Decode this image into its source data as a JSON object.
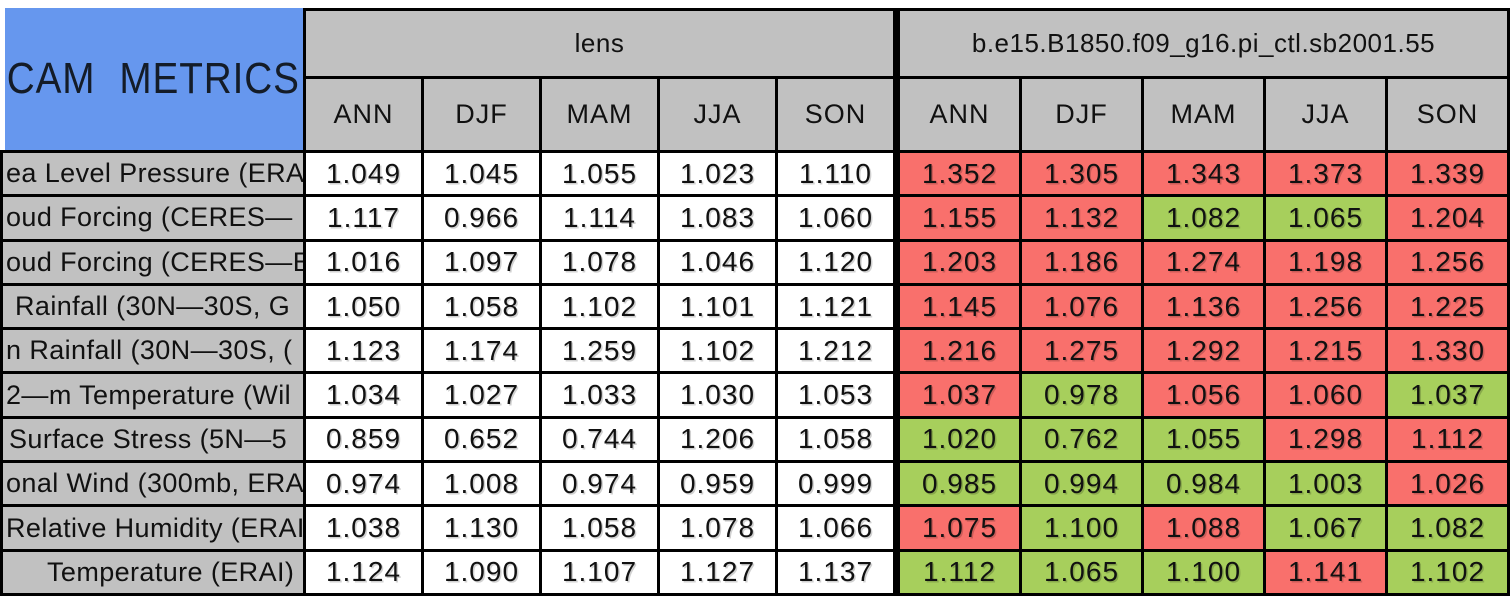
{
  "title": "CAM METRICS",
  "colors": {
    "blue": "#6697ee",
    "gray": "#c1c1c1",
    "red": "#f9706c",
    "green": "#a7cf5c",
    "border": "#000000",
    "plain_cell": "#ffffff"
  },
  "chart_data": {
    "type": "table",
    "title": "CAM METRICS",
    "column_groups": [
      {
        "label": "lens",
        "seasons": [
          "ANN",
          "DJF",
          "MAM",
          "JJA",
          "SON"
        ]
      },
      {
        "label": "b.e15.B1850.f09_g16.pi_ctl.sb2001.55",
        "seasons": [
          "ANN",
          "DJF",
          "MAM",
          "JJA",
          "SON"
        ]
      }
    ],
    "rows": [
      {
        "label": "ea Level Pressure (ERA",
        "lens": [
          "1.049",
          "1.045",
          "1.055",
          "1.023",
          "1.110"
        ],
        "case_values": [
          "1.352",
          "1.305",
          "1.343",
          "1.373",
          "1.339"
        ],
        "case_colors": [
          "red",
          "red",
          "red",
          "red",
          "red"
        ]
      },
      {
        "label": "oud Forcing (CERES—",
        "lens": [
          "1.117",
          "0.966",
          "1.114",
          "1.083",
          "1.060"
        ],
        "case_values": [
          "1.155",
          "1.132",
          "1.082",
          "1.065",
          "1.204"
        ],
        "case_colors": [
          "red",
          "red",
          "green",
          "green",
          "red"
        ]
      },
      {
        "label": "oud Forcing (CERES—E",
        "lens": [
          "1.016",
          "1.097",
          "1.078",
          "1.046",
          "1.120"
        ],
        "case_values": [
          "1.203",
          "1.186",
          "1.274",
          "1.198",
          "1.256"
        ],
        "case_colors": [
          "red",
          "red",
          "red",
          "red",
          "red"
        ]
      },
      {
        "label": "Rainfall (30N—30S, G",
        "lens": [
          "1.050",
          "1.058",
          "1.102",
          "1.101",
          "1.121"
        ],
        "case_values": [
          "1.145",
          "1.076",
          "1.136",
          "1.256",
          "1.225"
        ],
        "case_colors": [
          "red",
          "red",
          "red",
          "red",
          "red"
        ]
      },
      {
        "label": "n Rainfall (30N—30S, (",
        "lens": [
          "1.123",
          "1.174",
          "1.259",
          "1.102",
          "1.212"
        ],
        "case_values": [
          "1.216",
          "1.275",
          "1.292",
          "1.215",
          "1.330"
        ],
        "case_colors": [
          "red",
          "red",
          "red",
          "red",
          "red"
        ]
      },
      {
        "label": "2—m Temperature (Wil",
        "lens": [
          "1.034",
          "1.027",
          "1.033",
          "1.030",
          "1.053"
        ],
        "case_values": [
          "1.037",
          "0.978",
          "1.056",
          "1.060",
          "1.037"
        ],
        "case_colors": [
          "red",
          "green",
          "red",
          "red",
          "green"
        ]
      },
      {
        "label": "Surface Stress (5N—5",
        "lens": [
          "0.859",
          "0.652",
          "0.744",
          "1.206",
          "1.058"
        ],
        "case_values": [
          "1.020",
          "0.762",
          "1.055",
          "1.298",
          "1.112"
        ],
        "case_colors": [
          "green",
          "green",
          "green",
          "red",
          "red"
        ]
      },
      {
        "label": "onal Wind (300mb, ERA",
        "lens": [
          "0.974",
          "1.008",
          "0.974",
          "0.959",
          "0.999"
        ],
        "case_values": [
          "0.985",
          "0.994",
          "0.984",
          "1.003",
          "1.026"
        ],
        "case_colors": [
          "green",
          "green",
          "green",
          "green",
          "red"
        ]
      },
      {
        "label": "Relative Humidity (ERAI",
        "lens": [
          "1.038",
          "1.130",
          "1.058",
          "1.078",
          "1.066"
        ],
        "case_values": [
          "1.075",
          "1.100",
          "1.088",
          "1.067",
          "1.082"
        ],
        "case_colors": [
          "red",
          "green",
          "red",
          "green",
          "green"
        ]
      },
      {
        "label": "Temperature (ERAI)",
        "lens": [
          "1.124",
          "1.090",
          "1.107",
          "1.127",
          "1.137"
        ],
        "case_values": [
          "1.112",
          "1.065",
          "1.100",
          "1.141",
          "1.102"
        ],
        "case_colors": [
          "green",
          "green",
          "green",
          "red",
          "green"
        ]
      }
    ]
  }
}
